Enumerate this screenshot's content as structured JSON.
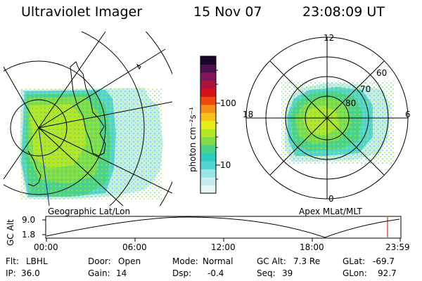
{
  "header": {
    "title": "Ultraviolet Imager",
    "date": "15 Nov 07",
    "time": "23:08:09 UT"
  },
  "geo_map": {
    "label": "Geographic Lat/Lon"
  },
  "polar_map": {
    "label": "Apex MLat/MLT",
    "mlt_labels": [
      "12",
      "18",
      "6",
      "0"
    ],
    "lat_labels": [
      "60",
      "70",
      "80"
    ]
  },
  "colorbar": {
    "unit_label": "photon cm⁻²s⁻¹",
    "ticks": [
      "100",
      "10"
    ],
    "colors": [
      "#e8f6f6",
      "#c6eeee",
      "#9be4e4",
      "#55d5cf",
      "#2ccdc0",
      "#4cd38a",
      "#7fdc4a",
      "#b4e628",
      "#e8ee1a",
      "#f7c21a",
      "#f58d14",
      "#ee4a10",
      "#d4101a",
      "#b0103c",
      "#801858",
      "#4a1050",
      "#180828"
    ]
  },
  "altitude_plot": {
    "ylabel": "GC Alt",
    "y_ticks": [
      "9.0",
      "1.8"
    ],
    "x_ticks": [
      "00:00",
      "06:00",
      "12:00",
      "18:00",
      "23:59"
    ]
  },
  "status": {
    "row1": {
      "flt_label": "Flt:",
      "flt_value": "LBHL",
      "door_label": "Door:",
      "door_value": "Open",
      "mode_label": "Mode:",
      "mode_value": "Normal",
      "gcalt_label": "GC Alt:",
      "gcalt_value": "7.3 Re",
      "glat_label": "GLat:",
      "glat_value": "-69.7"
    },
    "row2": {
      "ip_label": "IP:",
      "ip_value": "36.0",
      "gain_label": "Gain:",
      "gain_value": "14",
      "dsp_label": "Dsp:",
      "dsp_value": "-0.4",
      "seq_label": "Seq:",
      "seq_value": "39",
      "glon_label": "GLon:",
      "glon_value": "92.7"
    }
  }
}
